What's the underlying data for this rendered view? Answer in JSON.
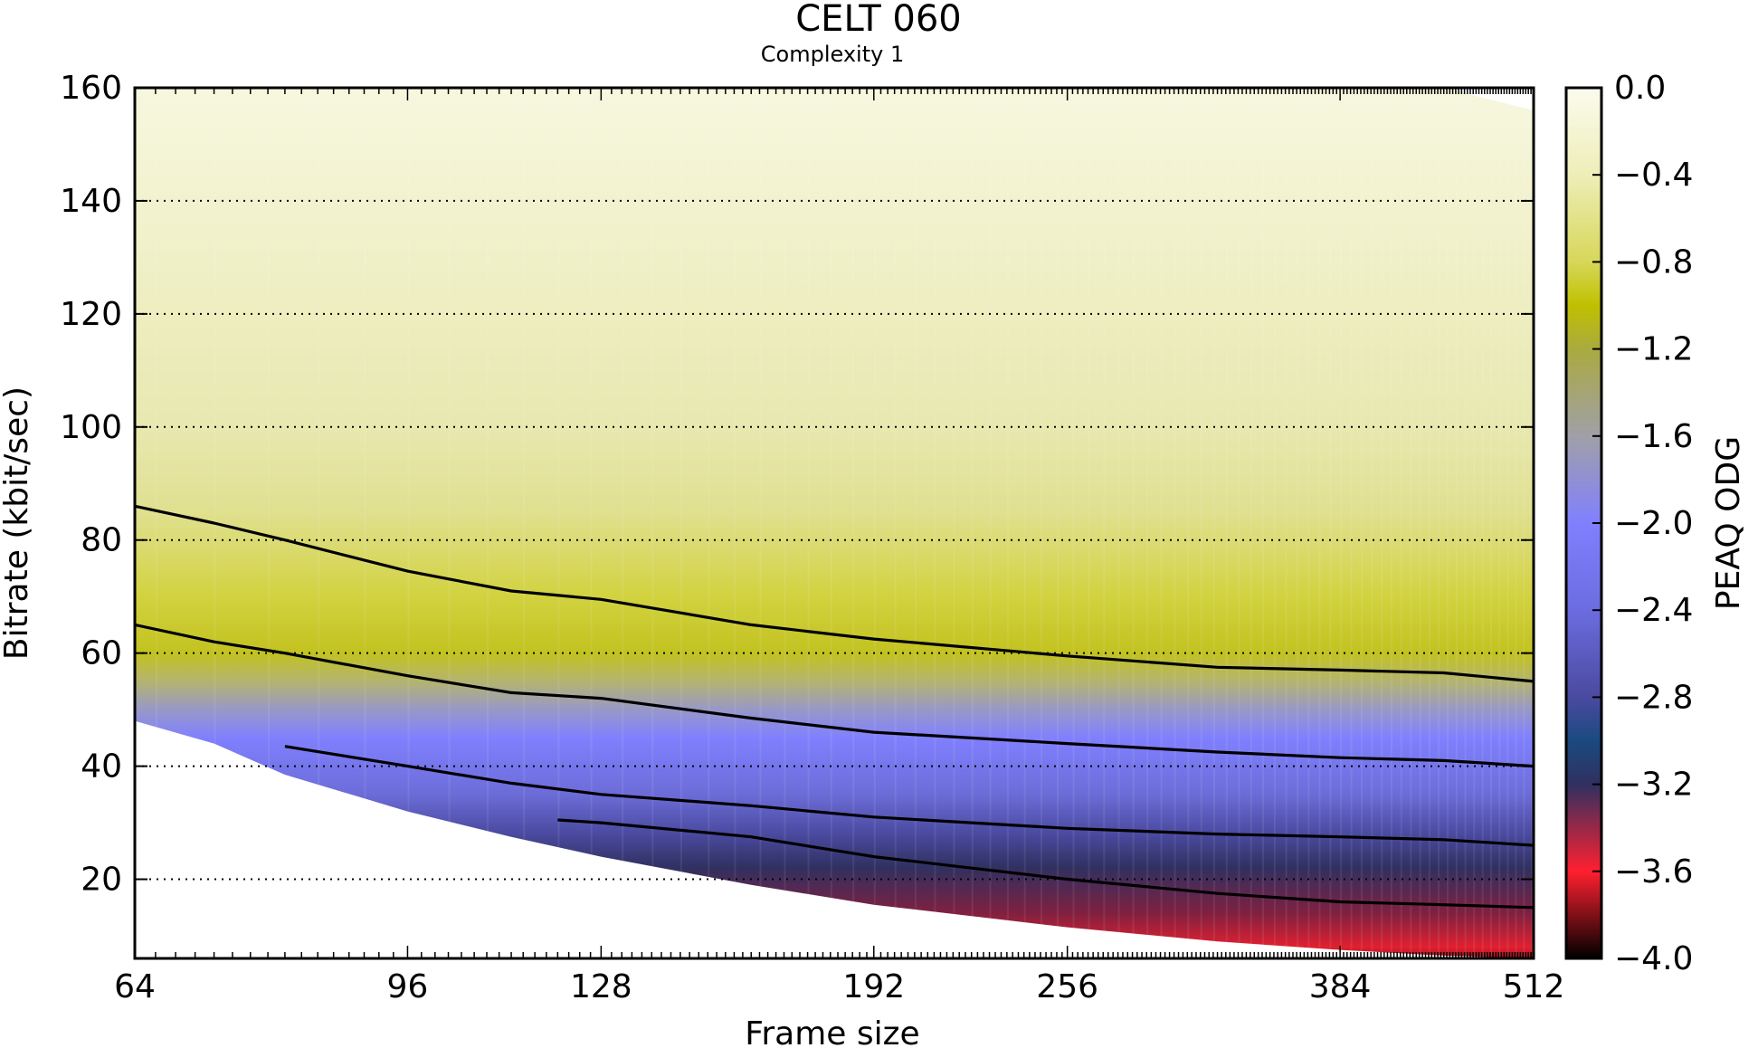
{
  "chart_data": {
    "type": "heatmap",
    "title": "CELT 060",
    "subtitle": "Complexity 1",
    "xlabel": "Frame size",
    "ylabel": "Bitrate (kbit/sec)",
    "x_scale": "log2",
    "xlim": [
      64,
      512
    ],
    "ylim": [
      6,
      160
    ],
    "x_ticks": [
      64,
      96,
      128,
      192,
      256,
      384,
      512
    ],
    "x_tick_labels": [
      "64",
      "96",
      "128",
      "192",
      "256",
      "384",
      "512"
    ],
    "y_ticks": [
      20,
      40,
      60,
      80,
      100,
      120,
      140,
      160
    ],
    "y_tick_labels": [
      "20",
      "40",
      "60",
      "80",
      "100",
      "120",
      "140",
      "160"
    ],
    "grid": "horizontal dotted",
    "colorbar": {
      "label": "PEAQ ODG",
      "range": [
        -4.0,
        0.0
      ],
      "ticks": [
        0.0,
        -0.4,
        -0.8,
        -1.2,
        -1.6,
        -2.0,
        -2.4,
        -2.8,
        -3.2,
        -3.6,
        -4.0
      ],
      "tick_labels": [
        "0.0",
        "−0.4",
        "−0.8",
        "−1.2",
        "−1.6",
        "−2.0",
        "−2.4",
        "−2.8",
        "−3.2",
        "−3.6",
        "−4.0"
      ],
      "stops": [
        {
          "value": 0.0,
          "color": "#fbfbef"
        },
        {
          "value": -0.4,
          "color": "#eeeeb8"
        },
        {
          "value": -0.8,
          "color": "#d7d75a"
        },
        {
          "value": -1.0,
          "color": "#c0c000"
        },
        {
          "value": -1.2,
          "color": "#aaaa40"
        },
        {
          "value": -1.6,
          "color": "#a0a0a8"
        },
        {
          "value": -2.0,
          "color": "#8080ff"
        },
        {
          "value": -2.4,
          "color": "#6c6ce0"
        },
        {
          "value": -2.8,
          "color": "#4a4aa0"
        },
        {
          "value": -3.0,
          "color": "#1a4a80"
        },
        {
          "value": -3.2,
          "color": "#303060"
        },
        {
          "value": -3.6,
          "color": "#ff2030"
        },
        {
          "value": -4.0,
          "color": "#000000"
        }
      ]
    },
    "data_boundary": {
      "x": [
        64,
        72,
        80,
        96,
        112,
        128,
        160,
        192,
        256,
        320,
        384,
        448,
        512
      ],
      "min_bitrate": [
        48,
        44,
        38.5,
        32,
        27.5,
        24,
        19,
        15.5,
        11.5,
        9,
        7.5,
        6.5,
        6
      ],
      "max_bitrate": [
        160,
        160,
        160,
        160,
        160,
        160,
        160,
        160,
        160,
        160,
        160,
        160,
        156
      ]
    },
    "contours": [
      {
        "x": [
          64,
          72,
          80,
          96,
          112,
          128,
          160,
          192,
          256,
          320,
          384,
          448,
          512
        ],
        "y": [
          86,
          83,
          80,
          74.5,
          71,
          69.5,
          65,
          62.5,
          59.5,
          57.5,
          57,
          56.5,
          55
        ]
      },
      {
        "x": [
          64,
          72,
          80,
          96,
          112,
          128,
          160,
          192,
          256,
          320,
          384,
          448,
          512
        ],
        "y": [
          65,
          62,
          60,
          56,
          53,
          52,
          48.5,
          46,
          44,
          42.5,
          41.5,
          41,
          40
        ]
      },
      {
        "x": [
          80,
          96,
          112,
          128,
          160,
          192,
          256,
          320,
          384,
          448,
          512
        ],
        "y": [
          43.5,
          40,
          37,
          35,
          33,
          31,
          29,
          28,
          27.5,
          27,
          26
        ]
      },
      {
        "x": [
          120,
          128,
          160,
          192,
          256,
          320,
          384,
          448,
          512
        ],
        "y": [
          30.5,
          30,
          27.5,
          24,
          20,
          17.5,
          16,
          15.5,
          15
        ]
      }
    ]
  }
}
